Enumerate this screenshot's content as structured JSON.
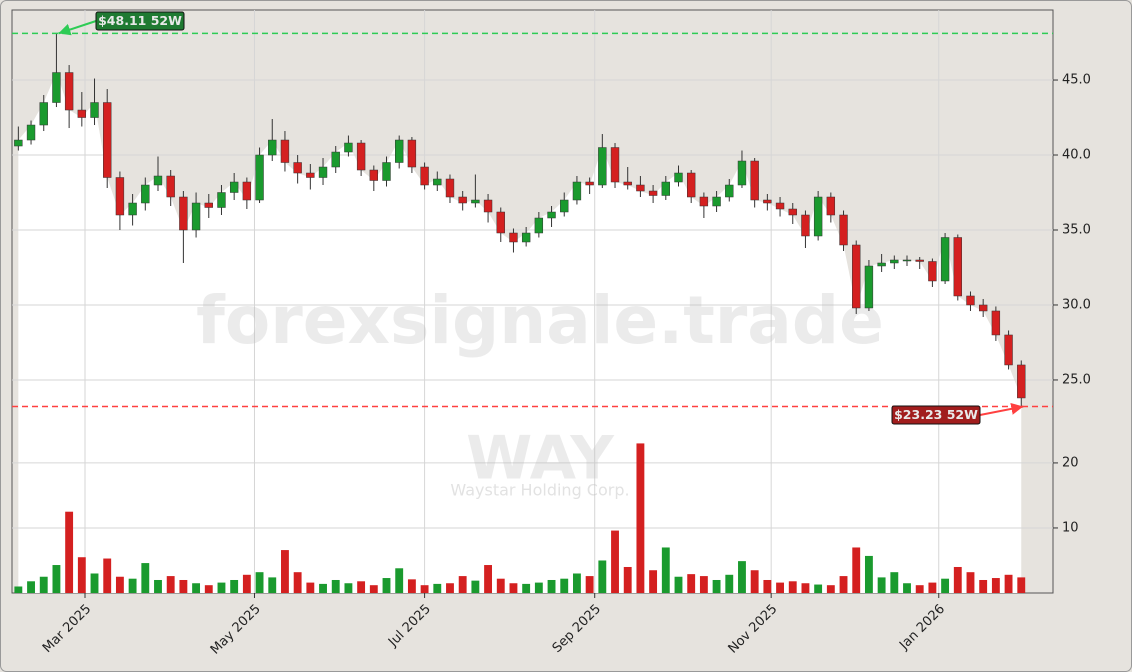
{
  "chart_data": {
    "type": "candlestick",
    "watermark": "forexsignale.trade",
    "symbol": "WAY",
    "company": "Waystar Holding Corp.",
    "xlim": [
      0,
      82
    ],
    "xticks": [
      {
        "value": 5.75,
        "label": "Mar 2025"
      },
      {
        "value": 19.1,
        "label": "May 2025"
      },
      {
        "value": 32.5,
        "label": "Jul 2025"
      },
      {
        "value": 45.9,
        "label": "Sep 2025"
      },
      {
        "value": 59.8,
        "label": "Nov 2025"
      },
      {
        "value": 73.0,
        "label": "Jan 2026"
      }
    ],
    "ylim": [
      22.33,
      49.67
    ],
    "yticks": [
      {
        "value": 25,
        "label": "25.0"
      },
      {
        "value": 30,
        "label": "30.0"
      },
      {
        "value": 35,
        "label": "35.0"
      },
      {
        "value": 40,
        "label": "40.0"
      },
      {
        "value": 45,
        "label": "45.0"
      }
    ],
    "y2lim": [
      0,
      26.6
    ],
    "y2ticks": [
      10,
      20
    ],
    "grid": true,
    "up_color": "#1a9a2e",
    "down_color": "#d42020",
    "open": [
      40.6,
      41.0,
      42.0,
      43.5,
      45.5,
      43.0,
      42.5,
      43.5,
      38.5,
      36.0,
      36.8,
      38.0,
      38.6,
      37.2,
      35.0,
      36.8,
      36.5,
      37.5,
      38.2,
      37.0,
      40.0,
      41.0,
      39.5,
      38.8,
      38.5,
      39.2,
      40.2,
      40.8,
      39.0,
      38.3,
      39.5,
      41.0,
      39.2,
      38.0,
      38.4,
      37.2,
      36.8,
      37.0,
      36.2,
      34.8,
      34.2,
      34.8,
      35.8,
      36.2,
      37.0,
      38.2,
      38.0,
      40.5,
      38.2,
      38.0,
      37.6,
      37.3,
      38.2,
      38.8,
      37.2,
      36.6,
      37.2,
      38.0,
      39.6,
      37.0,
      36.8,
      36.4,
      36.0,
      34.6,
      37.2,
      36.0,
      34.0,
      29.8,
      32.6,
      32.8,
      33.0,
      33.0,
      32.9,
      31.6,
      34.5,
      30.6,
      30.0,
      29.6,
      28.0,
      26.0
    ],
    "high": [
      41.9,
      42.3,
      44.0,
      48.11,
      46.0,
      44.2,
      45.1,
      44.4,
      38.9,
      37.4,
      38.5,
      39.9,
      39.0,
      37.6,
      37.5,
      37.4,
      38.0,
      38.8,
      38.5,
      40.5,
      42.4,
      41.6,
      40.0,
      39.4,
      39.8,
      40.6,
      41.3,
      41.0,
      39.3,
      39.9,
      41.3,
      41.2,
      39.5,
      38.9,
      38.7,
      37.6,
      38.7,
      37.4,
      36.5,
      35.1,
      35.2,
      36.2,
      36.6,
      37.5,
      38.6,
      38.5,
      41.4,
      40.8,
      39.2,
      38.6,
      38.0,
      38.6,
      39.3,
      39.0,
      37.5,
      37.6,
      38.4,
      40.3,
      39.8,
      37.4,
      37.2,
      36.8,
      36.3,
      37.6,
      37.5,
      36.3,
      34.3,
      33.0,
      33.4,
      33.3,
      33.3,
      33.2,
      33.1,
      34.8,
      34.7,
      30.9,
      30.4,
      29.9,
      28.3,
      26.3
    ],
    "low": [
      40.3,
      40.7,
      41.6,
      43.2,
      41.8,
      41.9,
      42.0,
      37.8,
      35.0,
      35.3,
      36.3,
      37.6,
      36.6,
      32.8,
      34.5,
      35.8,
      36.0,
      37.0,
      36.4,
      36.8,
      39.6,
      38.9,
      38.1,
      37.7,
      38.0,
      38.8,
      39.9,
      38.6,
      37.6,
      37.9,
      39.1,
      38.8,
      37.7,
      37.6,
      36.8,
      36.3,
      36.5,
      35.5,
      34.2,
      33.5,
      33.9,
      34.5,
      35.2,
      35.9,
      36.7,
      37.4,
      37.8,
      37.8,
      37.7,
      37.2,
      36.8,
      37.0,
      37.9,
      36.8,
      35.8,
      36.2,
      36.9,
      37.8,
      36.5,
      36.3,
      35.9,
      35.4,
      33.8,
      34.3,
      35.5,
      33.6,
      29.4,
      29.6,
      32.2,
      32.4,
      32.6,
      32.4,
      31.2,
      31.4,
      30.3,
      29.6,
      29.2,
      27.6,
      25.7,
      23.23
    ],
    "close": [
      41.0,
      42.0,
      43.5,
      45.5,
      43.0,
      42.5,
      43.5,
      38.5,
      36.0,
      36.8,
      38.0,
      38.6,
      37.2,
      35.0,
      36.8,
      36.5,
      37.5,
      38.2,
      37.0,
      40.0,
      41.0,
      39.5,
      38.8,
      38.5,
      39.2,
      40.2,
      40.8,
      39.0,
      38.3,
      39.5,
      41.0,
      39.2,
      38.0,
      38.4,
      37.2,
      36.8,
      37.0,
      36.2,
      34.8,
      34.2,
      34.8,
      35.8,
      36.2,
      37.0,
      38.2,
      38.0,
      40.5,
      38.2,
      38.0,
      37.6,
      37.3,
      38.2,
      38.8,
      37.2,
      36.6,
      37.2,
      38.0,
      39.6,
      37.0,
      36.8,
      36.4,
      36.0,
      34.6,
      37.2,
      36.0,
      34.0,
      29.8,
      32.6,
      32.8,
      33.0,
      33.0,
      32.9,
      31.6,
      34.5,
      30.6,
      30.0,
      29.6,
      28.0,
      26.0,
      23.8
    ],
    "volume": [
      1.0,
      1.8,
      2.5,
      4.3,
      12.5,
      5.5,
      3.0,
      5.3,
      2.5,
      2.2,
      4.6,
      2.0,
      2.6,
      2.0,
      1.5,
      1.2,
      1.6,
      2.0,
      2.8,
      3.2,
      2.4,
      6.6,
      3.2,
      1.6,
      1.4,
      2.0,
      1.5,
      1.8,
      1.2,
      2.3,
      3.8,
      2.1,
      1.2,
      1.4,
      1.5,
      2.6,
      1.9,
      4.3,
      2.2,
      1.5,
      1.4,
      1.6,
      2.0,
      2.2,
      3.0,
      2.6,
      5.0,
      9.6,
      4.0,
      23.0,
      3.5,
      7.0,
      2.5,
      2.9,
      2.6,
      2.0,
      2.8,
      4.9,
      3.5,
      2.0,
      1.6,
      1.8,
      1.5,
      1.3,
      1.2,
      2.6,
      7.0,
      5.7,
      2.4,
      3.2,
      1.5,
      1.2,
      1.6,
      2.2,
      4.0,
      3.2,
      2.0,
      2.3,
      2.8,
      2.4
    ],
    "high_52w": {
      "value": 48.11,
      "label": "$48.11 52W"
    },
    "low_52w": {
      "value": 23.23,
      "label": "$23.23 52W"
    }
  }
}
